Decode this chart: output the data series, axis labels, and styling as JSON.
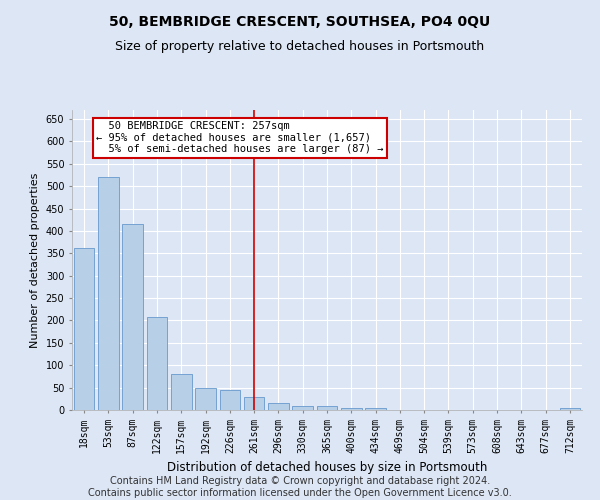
{
  "title": "50, BEMBRIDGE CRESCENT, SOUTHSEA, PO4 0QU",
  "subtitle": "Size of property relative to detached houses in Portsmouth",
  "xlabel": "Distribution of detached houses by size in Portsmouth",
  "ylabel": "Number of detached properties",
  "categories": [
    "18sqm",
    "53sqm",
    "87sqm",
    "122sqm",
    "157sqm",
    "192sqm",
    "226sqm",
    "261sqm",
    "296sqm",
    "330sqm",
    "365sqm",
    "400sqm",
    "434sqm",
    "469sqm",
    "504sqm",
    "539sqm",
    "573sqm",
    "608sqm",
    "643sqm",
    "677sqm",
    "712sqm"
  ],
  "values": [
    362,
    520,
    415,
    207,
    80,
    50,
    45,
    28,
    15,
    10,
    8,
    5,
    5,
    0,
    0,
    0,
    0,
    0,
    0,
    0,
    5
  ],
  "bar_color": "#b8cfe8",
  "bar_edge_color": "#6699cc",
  "vline_x_index": 7,
  "vline_color": "#cc0000",
  "annotation_text": "  50 BEMBRIDGE CRESCENT: 257sqm  \n← 95% of detached houses are smaller (1,657)\n  5% of semi-detached houses are larger (87) →",
  "annotation_box_color": "#ffffff",
  "annotation_box_edge": "#cc0000",
  "ylim": [
    0,
    670
  ],
  "yticks": [
    0,
    50,
    100,
    150,
    200,
    250,
    300,
    350,
    400,
    450,
    500,
    550,
    600,
    650
  ],
  "fig_bg_color": "#dce6f5",
  "plot_bg_color": "#dce6f5",
  "footer_line1": "Contains HM Land Registry data © Crown copyright and database right 2024.",
  "footer_line2": "Contains public sector information licensed under the Open Government Licence v3.0.",
  "title_fontsize": 10,
  "subtitle_fontsize": 9,
  "tick_fontsize": 7,
  "ylabel_fontsize": 8,
  "xlabel_fontsize": 8.5,
  "footer_fontsize": 7,
  "annot_fontsize": 7.5
}
